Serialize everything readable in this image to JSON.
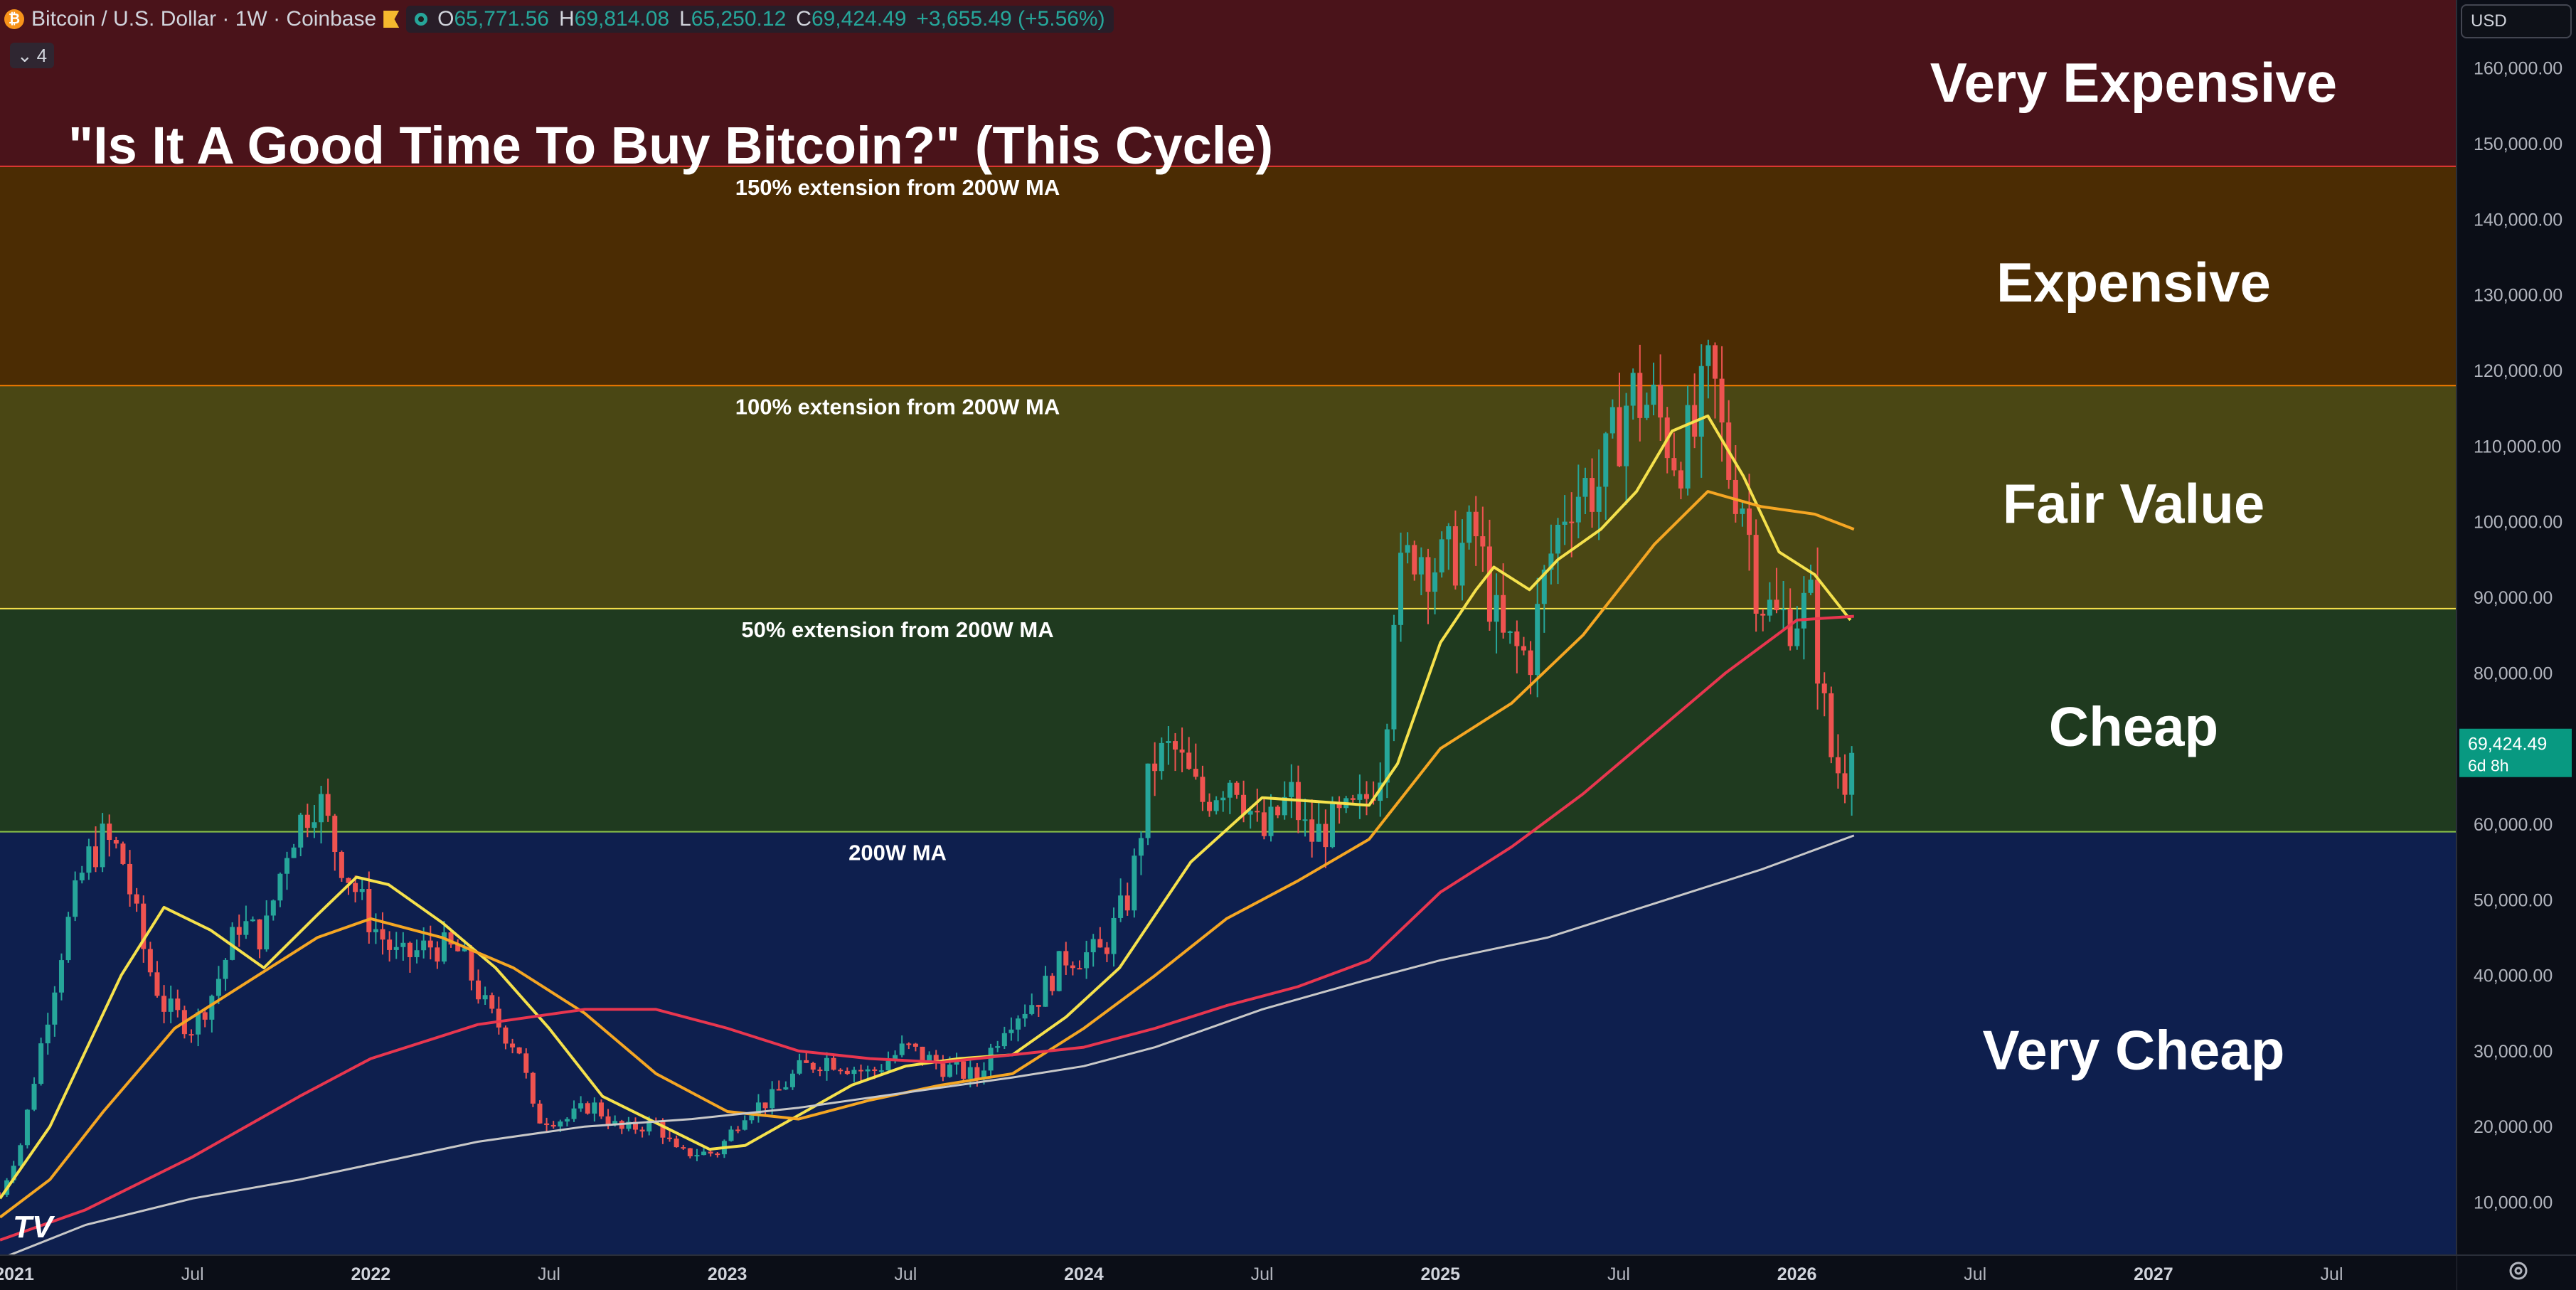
{
  "header": {
    "symbol": "Bitcoin / U.S. Dollar · 1W · Coinbase",
    "coin_glyph": "₿",
    "o_label": "O",
    "o_value": "65,771.56",
    "h_label": "H",
    "h_value": "69,814.08",
    "l_label": "L",
    "l_value": "65,250.12",
    "c_label": "C",
    "c_value": "69,424.49",
    "change": "+3,655.49 (+5.56%)",
    "indicator_count": "4"
  },
  "currency": "USD",
  "price_tag": {
    "price": "69,424.49",
    "countdown": "6d 8h"
  },
  "title": "\"Is It A Good Time To Buy Bitcoin?\" (This Cycle)",
  "zones": [
    {
      "label": "Very Expensive",
      "color": "#4a131a"
    },
    {
      "label": "Expensive",
      "color": "#4b2c03"
    },
    {
      "label": "Fair Value",
      "color": "#4a4714"
    },
    {
      "label": "Cheap",
      "color": "#1f3a1f"
    },
    {
      "label": "Very Cheap",
      "color": "#0e1f4e"
    }
  ],
  "level_lines": [
    {
      "label": "150% extension from 200W MA",
      "price": 147000,
      "color": "#e53935"
    },
    {
      "label": "100% extension from 200W MA",
      "price": 118000,
      "color": "#f57c00"
    },
    {
      "label": "50% extension from 200W MA",
      "price": 88500,
      "color": "#f7e04b"
    },
    {
      "label": "200W MA",
      "price": 59000,
      "color": "#8bc34a"
    }
  ],
  "colors": {
    "up": "#26a69a",
    "down": "#ef5350",
    "background": "#0b0e17",
    "axis_text": "#b2b5be",
    "price_tag": "#089981"
  },
  "tv_logo": "TV",
  "settings_icon": "gear-icon",
  "chart_data": {
    "type": "candlestick",
    "interval": "1W",
    "yaxis": {
      "ticks": [
        10000,
        20000,
        30000,
        40000,
        50000,
        60000,
        70000,
        80000,
        90000,
        100000,
        110000,
        120000,
        130000,
        140000,
        150000,
        160000
      ],
      "tick_labels": [
        "10,000.00",
        "20,000.00",
        "30,000.00",
        "40,000.00",
        "50,000.00",
        "60,000.00",
        "70,000.00",
        "80,000.00",
        "90,000.00",
        "100,000.00",
        "110,000.00",
        "120,000.00",
        "130,000.00",
        "140,000.00",
        "150,000.00",
        "160,000.00"
      ],
      "range": [
        3000,
        169000
      ]
    },
    "xaxis": {
      "range": [
        2020.96,
        2027.85
      ],
      "ticks": [
        {
          "t": 2021.0,
          "label": "2021",
          "bold": true
        },
        {
          "t": 2021.5,
          "label": "Jul",
          "bold": false
        },
        {
          "t": 2022.0,
          "label": "2022",
          "bold": true
        },
        {
          "t": 2022.5,
          "label": "Jul",
          "bold": false
        },
        {
          "t": 2023.0,
          "label": "2023",
          "bold": true
        },
        {
          "t": 2023.5,
          "label": "Jul",
          "bold": false
        },
        {
          "t": 2024.0,
          "label": "2024",
          "bold": true
        },
        {
          "t": 2024.5,
          "label": "Jul",
          "bold": false
        },
        {
          "t": 2025.0,
          "label": "2025",
          "bold": true
        },
        {
          "t": 2025.5,
          "label": "Jul",
          "bold": false
        },
        {
          "t": 2026.0,
          "label": "2026",
          "bold": true
        },
        {
          "t": 2026.5,
          "label": "Jul",
          "bold": false
        },
        {
          "t": 2027.0,
          "label": "2027",
          "bold": true
        },
        {
          "t": 2027.5,
          "label": "Jul",
          "bold": false
        }
      ]
    },
    "price_anchors": [
      [
        2020.96,
        11000
      ],
      [
        2021.02,
        18000
      ],
      [
        2021.08,
        32000
      ],
      [
        2021.14,
        45000
      ],
      [
        2021.2,
        55000
      ],
      [
        2021.25,
        58000
      ],
      [
        2021.3,
        56000
      ],
      [
        2021.37,
        42000
      ],
      [
        2021.42,
        36000
      ],
      [
        2021.5,
        33000
      ],
      [
        2021.56,
        38000
      ],
      [
        2021.63,
        47000
      ],
      [
        2021.7,
        45000
      ],
      [
        2021.77,
        58000
      ],
      [
        2021.85,
        64000
      ],
      [
        2021.9,
        57000
      ],
      [
        2022.0,
        47000
      ],
      [
        2022.08,
        42000
      ],
      [
        2022.17,
        44000
      ],
      [
        2022.25,
        43000
      ],
      [
        2022.33,
        35000
      ],
      [
        2022.42,
        30000
      ],
      [
        2022.46,
        21000
      ],
      [
        2022.55,
        21000
      ],
      [
        2022.62,
        23000
      ],
      [
        2022.7,
        19500
      ],
      [
        2022.8,
        20500
      ],
      [
        2022.86,
        16500
      ],
      [
        2022.97,
        16500
      ],
      [
        2023.05,
        22000
      ],
      [
        2023.12,
        23500
      ],
      [
        2023.2,
        27500
      ],
      [
        2023.28,
        29000
      ],
      [
        2023.4,
        27000
      ],
      [
        2023.5,
        30500
      ],
      [
        2023.6,
        28000
      ],
      [
        2023.7,
        26500
      ],
      [
        2023.78,
        34000
      ],
      [
        2023.87,
        37000
      ],
      [
        2023.95,
        42500
      ],
      [
        2024.05,
        43000
      ],
      [
        2024.13,
        51000
      ],
      [
        2024.19,
        68000
      ],
      [
        2024.25,
        70000
      ],
      [
        2024.33,
        63000
      ],
      [
        2024.42,
        67000
      ],
      [
        2024.5,
        58000
      ],
      [
        2024.58,
        64000
      ],
      [
        2024.63,
        58000
      ],
      [
        2024.7,
        60000
      ],
      [
        2024.78,
        62000
      ],
      [
        2024.84,
        69000
      ],
      [
        2024.87,
        90000
      ],
      [
        2024.93,
        97000
      ],
      [
        2025.0,
        94000
      ],
      [
        2025.1,
        98000
      ],
      [
        2025.17,
        84000
      ],
      [
        2025.25,
        82000
      ],
      [
        2025.3,
        94000
      ],
      [
        2025.36,
        104000
      ],
      [
        2025.45,
        105000
      ],
      [
        2025.53,
        117000
      ],
      [
        2025.6,
        115000
      ],
      [
        2025.66,
        109000
      ],
      [
        2025.71,
        111000
      ],
      [
        2025.76,
        120000
      ],
      [
        2025.8,
        108000
      ],
      [
        2025.85,
        103000
      ],
      [
        2025.89,
        91000
      ],
      [
        2025.94,
        87000
      ],
      [
        2026.0,
        88000
      ],
      [
        2026.04,
        89000
      ],
      [
        2026.07,
        77000
      ],
      [
        2026.1,
        68000
      ],
      [
        2026.14,
        66000
      ],
      [
        2026.16,
        69424
      ]
    ],
    "series": [
      {
        "name": "",
        "color": "#f5e14c",
        "width": 4,
        "points": [
          [
            2020.96,
            10500
          ],
          [
            2021.1,
            20000
          ],
          [
            2021.3,
            40000
          ],
          [
            2021.42,
            49000
          ],
          [
            2021.55,
            46000
          ],
          [
            2021.7,
            41000
          ],
          [
            2021.85,
            48000
          ],
          [
            2021.96,
            53000
          ],
          [
            2022.05,
            52000
          ],
          [
            2022.2,
            47000
          ],
          [
            2022.35,
            41000
          ],
          [
            2022.5,
            33000
          ],
          [
            2022.65,
            24000
          ],
          [
            2022.8,
            20500
          ],
          [
            2022.95,
            17000
          ],
          [
            2023.05,
            17500
          ],
          [
            2023.2,
            21500
          ],
          [
            2023.35,
            25500
          ],
          [
            2023.5,
            28000
          ],
          [
            2023.65,
            29000
          ],
          [
            2023.8,
            29500
          ],
          [
            2023.95,
            34500
          ],
          [
            2024.1,
            41000
          ],
          [
            2024.3,
            55000
          ],
          [
            2024.5,
            63500
          ],
          [
            2024.65,
            63000
          ],
          [
            2024.8,
            62500
          ],
          [
            2024.88,
            68000
          ],
          [
            2025.0,
            84000
          ],
          [
            2025.1,
            91000
          ],
          [
            2025.15,
            94000
          ],
          [
            2025.25,
            91000
          ],
          [
            2025.33,
            95000
          ],
          [
            2025.45,
            99000
          ],
          [
            2025.55,
            104000
          ],
          [
            2025.65,
            112000
          ],
          [
            2025.75,
            114000
          ],
          [
            2025.85,
            106000
          ],
          [
            2025.95,
            96000
          ],
          [
            2026.05,
            93000
          ],
          [
            2026.15,
            87000
          ]
        ]
      },
      {
        "name": "",
        "color": "#f5a623",
        "width": 4,
        "points": [
          [
            2020.96,
            8000
          ],
          [
            2021.1,
            13000
          ],
          [
            2021.25,
            22000
          ],
          [
            2021.45,
            33000
          ],
          [
            2021.65,
            39000
          ],
          [
            2021.85,
            45000
          ],
          [
            2022.0,
            47500
          ],
          [
            2022.2,
            45000
          ],
          [
            2022.4,
            41000
          ],
          [
            2022.6,
            35000
          ],
          [
            2022.8,
            27000
          ],
          [
            2023.0,
            22000
          ],
          [
            2023.2,
            21000
          ],
          [
            2023.4,
            23500
          ],
          [
            2023.6,
            25500
          ],
          [
            2023.8,
            27000
          ],
          [
            2024.0,
            33000
          ],
          [
            2024.2,
            40000
          ],
          [
            2024.4,
            47500
          ],
          [
            2024.6,
            52500
          ],
          [
            2024.8,
            58000
          ],
          [
            2025.0,
            70000
          ],
          [
            2025.2,
            76000
          ],
          [
            2025.4,
            85000
          ],
          [
            2025.6,
            97000
          ],
          [
            2025.75,
            104000
          ],
          [
            2025.9,
            102000
          ],
          [
            2026.05,
            101000
          ],
          [
            2026.16,
            99000
          ]
        ]
      },
      {
        "name": "",
        "color": "#e8364f",
        "width": 4,
        "points": [
          [
            2020.96,
            5000
          ],
          [
            2021.2,
            9000
          ],
          [
            2021.5,
            16000
          ],
          [
            2021.8,
            24000
          ],
          [
            2022.0,
            29000
          ],
          [
            2022.3,
            33500
          ],
          [
            2022.6,
            35500
          ],
          [
            2022.8,
            35500
          ],
          [
            2023.0,
            33000
          ],
          [
            2023.2,
            30000
          ],
          [
            2023.4,
            29000
          ],
          [
            2023.6,
            28500
          ],
          [
            2023.8,
            29500
          ],
          [
            2024.0,
            30500
          ],
          [
            2024.2,
            33000
          ],
          [
            2024.4,
            36000
          ],
          [
            2024.6,
            38500
          ],
          [
            2024.8,
            42000
          ],
          [
            2025.0,
            51000
          ],
          [
            2025.2,
            57000
          ],
          [
            2025.4,
            64000
          ],
          [
            2025.6,
            72000
          ],
          [
            2025.8,
            80000
          ],
          [
            2026.0,
            87000
          ],
          [
            2026.16,
            87500
          ]
        ]
      },
      {
        "name": "",
        "color": "#c8c8c8",
        "width": 3,
        "points": [
          [
            2020.96,
            2500
          ],
          [
            2021.2,
            7000
          ],
          [
            2021.5,
            10500
          ],
          [
            2021.8,
            13000
          ],
          [
            2022.0,
            15000
          ],
          [
            2022.3,
            18000
          ],
          [
            2022.6,
            20000
          ],
          [
            2022.9,
            21000
          ],
          [
            2023.2,
            22500
          ],
          [
            2023.5,
            24500
          ],
          [
            2023.8,
            26500
          ],
          [
            2024.0,
            28000
          ],
          [
            2024.2,
            30500
          ],
          [
            2024.5,
            35500
          ],
          [
            2024.8,
            39500
          ],
          [
            2025.0,
            42000
          ],
          [
            2025.3,
            45000
          ],
          [
            2025.6,
            49500
          ],
          [
            2025.9,
            54000
          ],
          [
            2026.16,
            58500
          ]
        ]
      }
    ]
  }
}
